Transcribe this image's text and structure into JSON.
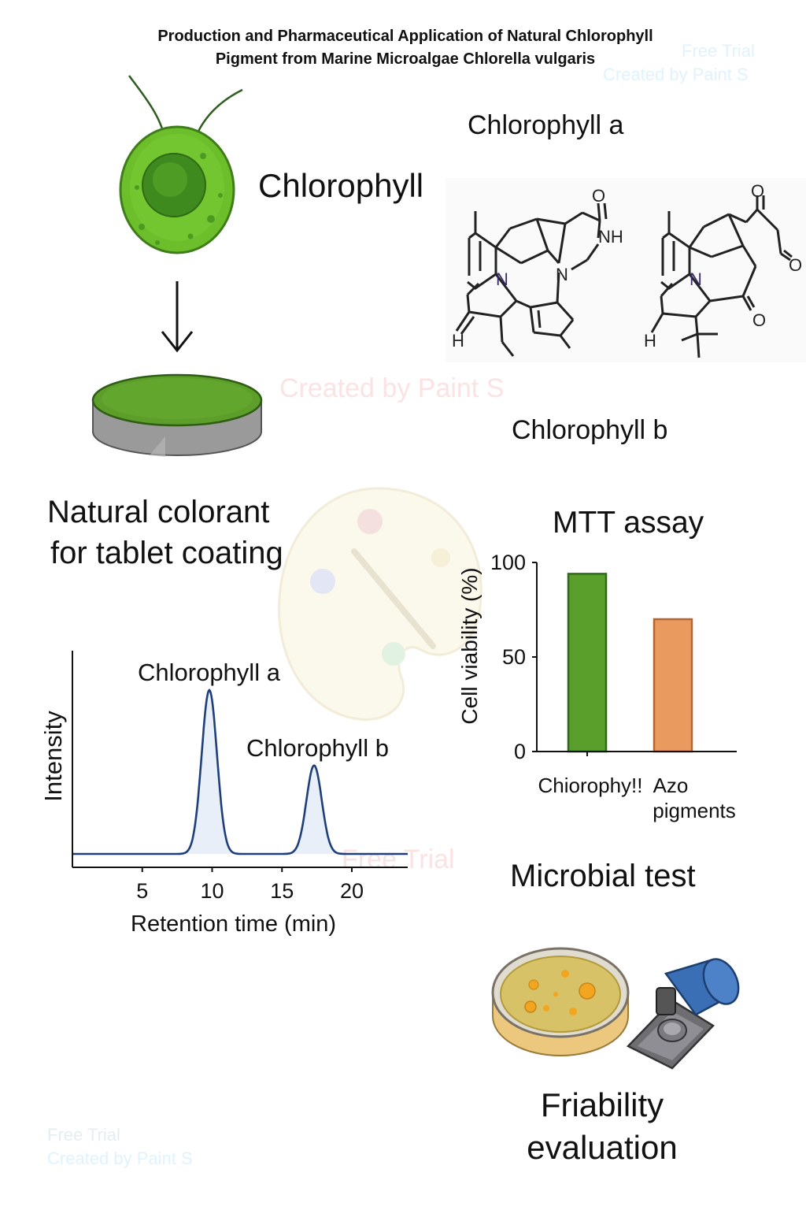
{
  "title": {
    "line1": "Production and Pharmaceutical Application of Natural Chlorophyll",
    "line2": "Pigment from Marine Microalgae Chlorella vulgaris"
  },
  "labels": {
    "chlorophyll": "Chlorophyll",
    "chlorophyll_a": "Chlorophyll a",
    "chlorophyll_b": "Chlorophyll b",
    "natural_colorant_line1": "Natural colorant",
    "natural_colorant_line2": "for tablet coating",
    "microbial_test": "Microbial test",
    "friability_line1": "Friability",
    "friability_line2": "evaluation"
  },
  "structure_atoms": {
    "left": {
      "o": "O",
      "nh": "NH",
      "n1": "N",
      "n2": "N",
      "h": "H"
    },
    "right": {
      "o1": "O",
      "o2": "O",
      "o3": "O",
      "n": "N",
      "h": "H"
    }
  },
  "watermarks": {
    "free_trial": "Free Trial",
    "created_by": "Created by Paint S"
  },
  "colors": {
    "cell_green": "#6cbf2a",
    "bar_green": "#5a9e2c",
    "bar_orange": "#e99a5e",
    "hplc_line": "#1e3f7a",
    "petri_agar": "#e8d27a",
    "clip_blue": "#3b6fb5"
  },
  "chart_data": [
    {
      "type": "line",
      "title": "",
      "xlabel": "Retention time (min)",
      "ylabel": "Intensity",
      "xlim": [
        0,
        24
      ],
      "xticks": [
        5,
        10,
        15,
        20
      ],
      "peaks": [
        {
          "label": "Chlorophyll a",
          "x": 9.8,
          "relative_height": 1.0
        },
        {
          "label": "Chlorophyll b",
          "x": 17.3,
          "relative_height": 0.54
        }
      ]
    },
    {
      "type": "bar",
      "title": "MTT assay",
      "xlabel": "",
      "ylabel": "Cell viability (%)",
      "ylim": [
        0,
        100
      ],
      "yticks": [
        0,
        50,
        100
      ],
      "categories": [
        "Chiorophy!!",
        "Azo pigments"
      ],
      "category_lines": [
        [
          "Chiorophy!!"
        ],
        [
          "Azo",
          "pigments"
        ]
      ],
      "values": [
        94,
        70
      ],
      "bar_colors": [
        "#5a9e2c",
        "#e99a5e"
      ]
    }
  ]
}
